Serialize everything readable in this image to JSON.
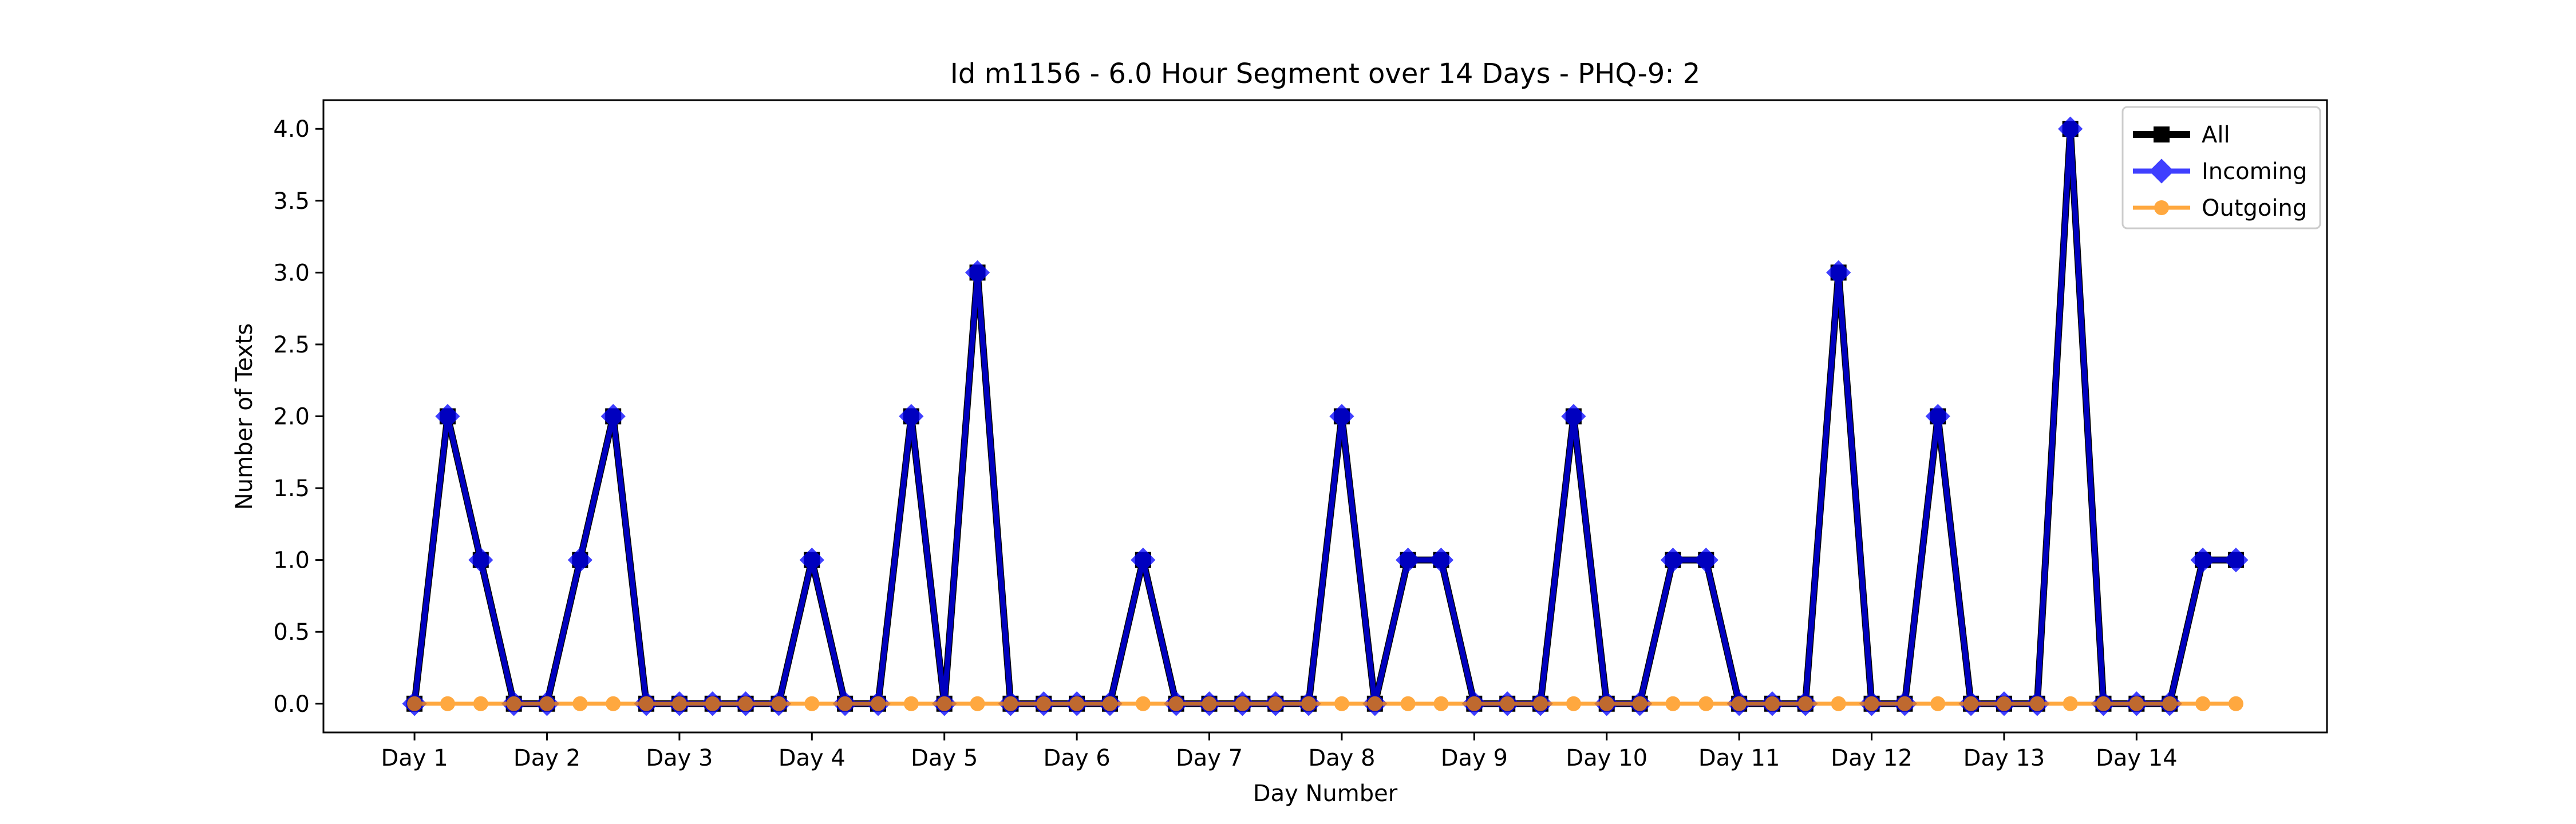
{
  "chart_data": {
    "type": "line",
    "title": "Id m1156 - 6.0 Hour Segment over 14 Days - PHQ-9: 2",
    "xlabel": "Day Number",
    "ylabel": "Number of Texts",
    "x_tick_labels": [
      "Day 1",
      "Day 2",
      "Day 3",
      "Day 4",
      "Day 5",
      "Day 6",
      "Day 7",
      "Day 8",
      "Day 9",
      "Day 10",
      "Day 11",
      "Day 12",
      "Day 13",
      "Day 14"
    ],
    "y_tick_labels": [
      "0.0",
      "0.5",
      "1.0",
      "1.5",
      "2.0",
      "2.5",
      "3.0",
      "3.5",
      "4.0"
    ],
    "ylim": [
      -0.2,
      4.2
    ],
    "segments_per_day": 4,
    "legend_position": "top-right",
    "grid": false,
    "series": [
      {
        "name": "All",
        "color": "#000000",
        "marker": "square",
        "values": [
          0,
          2,
          1,
          0,
          0,
          1,
          2,
          0,
          0,
          0,
          0,
          0,
          1,
          0,
          0,
          2,
          0,
          3,
          0,
          0,
          0,
          0,
          1,
          0,
          0,
          0,
          0,
          0,
          2,
          0,
          1,
          1,
          0,
          0,
          0,
          2,
          0,
          0,
          1,
          1,
          0,
          0,
          0,
          3,
          0,
          0,
          2,
          0,
          0,
          0,
          4,
          0,
          0,
          0,
          1,
          1
        ]
      },
      {
        "name": "Incoming",
        "color": "#0000ff",
        "marker": "diamond",
        "values": [
          0,
          2,
          1,
          0,
          0,
          1,
          2,
          0,
          0,
          0,
          0,
          0,
          1,
          0,
          0,
          2,
          0,
          3,
          0,
          0,
          0,
          0,
          1,
          0,
          0,
          0,
          0,
          0,
          2,
          0,
          1,
          1,
          0,
          0,
          0,
          2,
          0,
          0,
          1,
          1,
          0,
          0,
          0,
          3,
          0,
          0,
          2,
          0,
          0,
          0,
          4,
          0,
          0,
          0,
          1,
          1
        ]
      },
      {
        "name": "Outgoing",
        "color": "#ff8c00",
        "marker": "circle",
        "values": [
          0,
          0,
          0,
          0,
          0,
          0,
          0,
          0,
          0,
          0,
          0,
          0,
          0,
          0,
          0,
          0,
          0,
          0,
          0,
          0,
          0,
          0,
          0,
          0,
          0,
          0,
          0,
          0,
          0,
          0,
          0,
          0,
          0,
          0,
          0,
          0,
          0,
          0,
          0,
          0,
          0,
          0,
          0,
          0,
          0,
          0,
          0,
          0,
          0,
          0,
          0,
          0,
          0,
          0,
          0,
          0
        ]
      }
    ]
  }
}
